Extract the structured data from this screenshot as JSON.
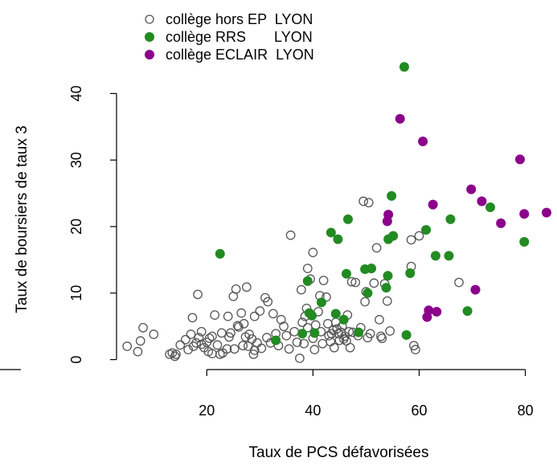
{
  "chart_data": {
    "type": "scatter",
    "xlabel": "Taux de PCS défavorisées",
    "ylabel": "Taux de boursiers de taux 3",
    "xlim": [
      3,
      84
    ],
    "ylim": [
      -1.5,
      45
    ],
    "xticks": [
      20,
      40,
      60,
      80
    ],
    "yticks": [
      0,
      10,
      20,
      30,
      40
    ],
    "grid": false,
    "legend_position": "top-left",
    "series": [
      {
        "name": "collège hors EP  LYON",
        "marker": "open-circle",
        "color": "#555555",
        "points": [
          [
            5,
            2
          ],
          [
            7,
            1.2
          ],
          [
            7.5,
            2.8
          ],
          [
            8,
            4.8
          ],
          [
            10,
            3.8
          ],
          [
            13,
            0.8
          ],
          [
            13.5,
            1
          ],
          [
            14,
            0.5
          ],
          [
            14.2,
            0.8
          ],
          [
            15,
            2.2
          ],
          [
            16,
            3
          ],
          [
            16.5,
            1.5
          ],
          [
            17,
            3.8
          ],
          [
            17.3,
            6.3
          ],
          [
            17.5,
            2
          ],
          [
            18,
            2.5
          ],
          [
            18.3,
            9.8
          ],
          [
            18.5,
            3.3
          ],
          [
            19,
            4.2
          ],
          [
            19,
            2.3
          ],
          [
            19.5,
            1.8
          ],
          [
            20,
            2.6
          ],
          [
            20.3,
            1.2
          ],
          [
            20.5,
            3.2
          ],
          [
            21,
            0.9
          ],
          [
            21,
            3.5
          ],
          [
            21.5,
            6.7
          ],
          [
            22,
            2.2
          ],
          [
            22.5,
            0.8
          ],
          [
            22.8,
            4
          ],
          [
            23,
            1
          ],
          [
            23.8,
            1.6
          ],
          [
            24,
            6.5
          ],
          [
            24.2,
            3.4
          ],
          [
            24.5,
            4
          ],
          [
            25,
            9.5
          ],
          [
            25.2,
            1.6
          ],
          [
            25.5,
            10.6
          ],
          [
            25.8,
            5.1
          ],
          [
            26,
            4.9
          ],
          [
            26.5,
            7
          ],
          [
            26.8,
            2.1
          ],
          [
            27,
            5.4
          ],
          [
            27.3,
            3.4
          ],
          [
            27.5,
            10.9
          ],
          [
            27.8,
            2
          ],
          [
            28,
            3.8
          ],
          [
            28.5,
            3.1
          ],
          [
            28.8,
            0.8
          ],
          [
            29,
            1.4
          ],
          [
            29,
            6.5
          ],
          [
            29.5,
            2.5
          ],
          [
            30,
            7.3
          ],
          [
            30.3,
            1.7
          ],
          [
            31,
            9.3
          ],
          [
            31.3,
            3.3
          ],
          [
            31.5,
            8.7
          ],
          [
            32,
            2.5
          ],
          [
            32.5,
            6.9
          ],
          [
            33,
            3.9
          ],
          [
            33.5,
            2.1
          ],
          [
            34,
            6
          ],
          [
            34.5,
            5
          ],
          [
            35,
            3.6
          ],
          [
            35.5,
            1.6
          ],
          [
            35.8,
            18.7
          ],
          [
            36.5,
            4.2
          ],
          [
            37,
            2.6
          ],
          [
            37.5,
            0.2
          ],
          [
            37.8,
            10.5
          ],
          [
            38,
            5.6
          ],
          [
            38.3,
            2.4
          ],
          [
            38.5,
            6.5
          ],
          [
            38.8,
            7.7
          ],
          [
            39,
            13.7
          ],
          [
            39,
            4.8
          ],
          [
            39.5,
            12.1
          ],
          [
            40,
            16.1
          ],
          [
            40,
            3.2
          ],
          [
            40.3,
            1.5
          ],
          [
            40.5,
            5.2
          ],
          [
            41,
            7.2
          ],
          [
            41.3,
            9.6
          ],
          [
            41.5,
            4.2
          ],
          [
            41.8,
            2.4
          ],
          [
            42,
            11.9
          ],
          [
            42.5,
            9.4
          ],
          [
            42.8,
            5.4
          ],
          [
            43,
            3.6
          ],
          [
            43.3,
            2.7
          ],
          [
            43.5,
            3.9
          ],
          [
            43.8,
            4.4
          ],
          [
            44,
            1.8
          ],
          [
            44.3,
            5.6
          ],
          [
            44.5,
            4.6
          ],
          [
            44.8,
            3.9
          ],
          [
            45,
            2.9
          ],
          [
            45.3,
            4.1
          ],
          [
            45.5,
            5
          ],
          [
            45.8,
            3.1
          ],
          [
            46,
            3.5
          ],
          [
            46.3,
            2.8
          ],
          [
            46.5,
            6.7
          ],
          [
            46.8,
            4.2
          ],
          [
            47,
            1.8
          ],
          [
            47.3,
            11.7
          ],
          [
            47.5,
            4.1
          ],
          [
            48,
            11.6
          ],
          [
            48.5,
            3.6
          ],
          [
            49,
            4.8
          ],
          [
            49.5,
            23.8
          ],
          [
            49.8,
            8.7
          ],
          [
            50,
            10.2
          ],
          [
            50.3,
            3.3
          ],
          [
            50.5,
            23.6
          ],
          [
            50.8,
            3.9
          ],
          [
            51,
            13.7
          ],
          [
            51.5,
            11.5
          ],
          [
            52,
            16.8
          ],
          [
            52.5,
            6
          ],
          [
            52.8,
            3.5
          ],
          [
            53,
            3.2
          ],
          [
            53.5,
            11.4
          ],
          [
            54,
            8.8
          ],
          [
            54.5,
            4.3
          ],
          [
            58.5,
            14
          ],
          [
            58.5,
            18
          ],
          [
            59,
            2.1
          ],
          [
            59.3,
            1.5
          ],
          [
            60,
            18.6
          ],
          [
            67.5,
            11.6
          ]
        ]
      },
      {
        "name": "collège RRS       LYON",
        "marker": "filled-circle",
        "color": "#228B22",
        "points": [
          [
            22.5,
            15.9
          ],
          [
            33,
            2.9
          ],
          [
            38,
            3.9
          ],
          [
            39,
            11.8
          ],
          [
            39.3,
            7
          ],
          [
            39.8,
            6.6
          ],
          [
            40.3,
            4
          ],
          [
            41.6,
            8.6
          ],
          [
            43.4,
            19.1
          ],
          [
            44.3,
            6.9
          ],
          [
            44.7,
            18.1
          ],
          [
            45.8,
            6
          ],
          [
            46.3,
            12.9
          ],
          [
            46.6,
            21.1
          ],
          [
            48.6,
            4.1
          ],
          [
            49.8,
            13.6
          ],
          [
            50.3,
            10
          ],
          [
            51,
            13.7
          ],
          [
            53.8,
            10.8
          ],
          [
            54.1,
            12.6
          ],
          [
            54.2,
            18.1
          ],
          [
            54.8,
            24.6
          ],
          [
            55.1,
            18.6
          ],
          [
            57.2,
            44
          ],
          [
            57.6,
            3.7
          ],
          [
            58.3,
            13
          ],
          [
            61.3,
            19.5
          ],
          [
            63.1,
            15.6
          ],
          [
            65.6,
            15.6
          ],
          [
            65.9,
            21.1
          ],
          [
            69.1,
            7.3
          ],
          [
            73.4,
            22.9
          ],
          [
            79.8,
            17.7
          ]
        ]
      },
      {
        "name": "collège ECLAIR  LYON",
        "marker": "filled-circle",
        "color": "#8B008B",
        "points": [
          [
            54,
            20.8
          ],
          [
            54.2,
            21.8
          ],
          [
            56.4,
            36.2
          ],
          [
            60.7,
            32.8
          ],
          [
            61.5,
            6.4
          ],
          [
            61.8,
            7.4
          ],
          [
            62.6,
            23.3
          ],
          [
            63.3,
            7.2
          ],
          [
            69.8,
            25.6
          ],
          [
            70.6,
            10.5
          ],
          [
            71.8,
            23.8
          ],
          [
            75.4,
            20.5
          ],
          [
            79,
            30.1
          ],
          [
            79.8,
            21.9
          ],
          [
            84,
            22.1
          ]
        ]
      }
    ]
  }
}
